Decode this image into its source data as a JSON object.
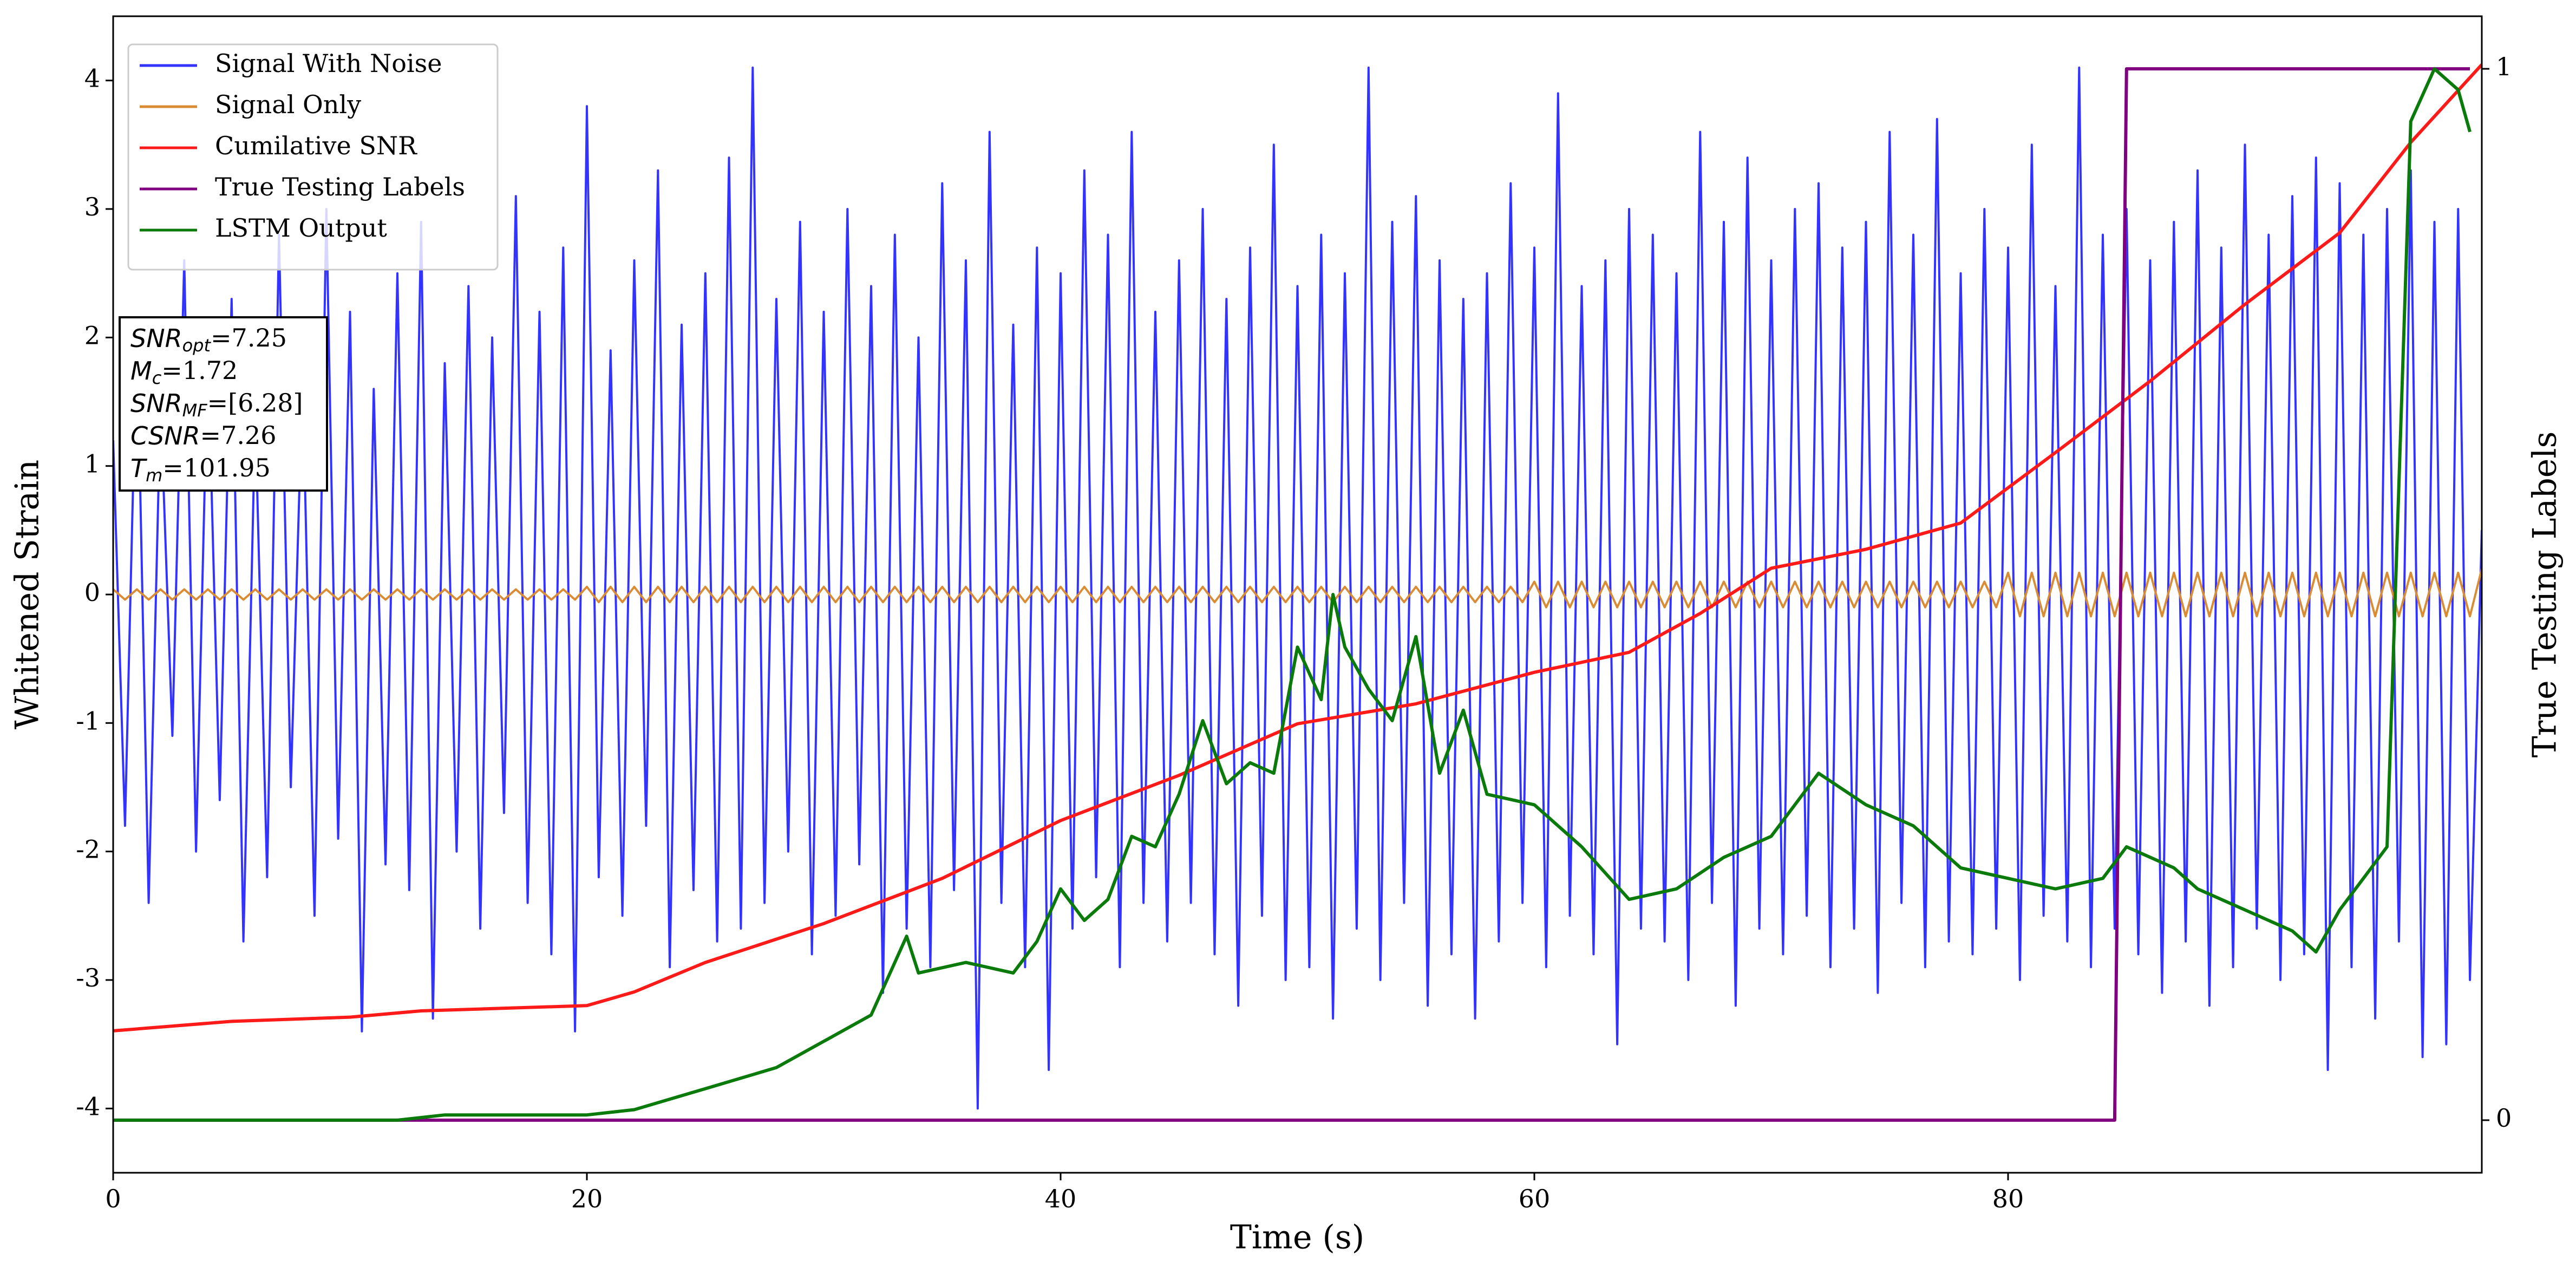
{
  "chart_data": {
    "type": "line",
    "xlabel": "Time (s)",
    "ylabel": "Whitened Strain",
    "y2label": "True Testing Labels",
    "xlim": [
      0,
      100
    ],
    "xticks": [
      0,
      20,
      40,
      60,
      80
    ],
    "ylim": [
      -4.5,
      4.5
    ],
    "yticks": [
      -4,
      -3,
      -2,
      -1,
      0,
      1,
      2,
      3,
      4
    ],
    "y2lim": [
      -0.05,
      1.05
    ],
    "y2ticks": [
      0,
      1
    ],
    "legend": "upper left",
    "x": [
      0,
      0.5,
      1,
      1.5,
      2,
      2.5,
      3,
      3.5,
      4,
      4.5,
      5,
      5.5,
      6,
      6.5,
      7,
      7.5,
      8,
      8.5,
      9,
      9.5,
      10,
      10.5,
      11,
      11.5,
      12,
      12.5,
      13,
      13.5,
      14,
      14.5,
      15,
      15.5,
      16,
      16.5,
      17,
      17.5,
      18,
      18.5,
      19,
      19.5,
      20,
      20.5,
      21,
      21.5,
      22,
      22.5,
      23,
      23.5,
      24,
      24.5,
      25,
      25.5,
      26,
      26.5,
      27,
      27.5,
      28,
      28.5,
      29,
      29.5,
      30,
      30.5,
      31,
      31.5,
      32,
      32.5,
      33,
      33.5,
      34,
      34.5,
      35,
      35.5,
      36,
      36.5,
      37,
      37.5,
      38,
      38.5,
      39,
      39.5,
      40,
      40.5,
      41,
      41.5,
      42,
      42.5,
      43,
      43.5,
      44,
      44.5,
      45,
      45.5,
      46,
      46.5,
      47,
      47.5,
      48,
      48.5,
      49,
      49.5,
      50,
      50.5,
      51,
      51.5,
      52,
      52.5,
      53,
      53.5,
      54,
      54.5,
      55,
      55.5,
      56,
      56.5,
      57,
      57.5,
      58,
      58.5,
      59,
      59.5,
      60,
      60.5,
      61,
      61.5,
      62,
      62.5,
      63,
      63.5,
      64,
      64.5,
      65,
      65.5,
      66,
      66.5,
      67,
      67.5,
      68,
      68.5,
      69,
      69.5,
      70,
      70.5,
      71,
      71.5,
      72,
      72.5,
      73,
      73.5,
      74,
      74.5,
      75,
      75.5,
      76,
      76.5,
      77,
      77.5,
      78,
      78.5,
      79,
      79.5,
      80,
      80.5,
      81,
      81.5,
      82,
      82.5,
      83,
      83.5,
      84,
      84.5,
      85,
      85.5,
      86,
      86.5,
      87,
      87.5,
      88,
      88.5,
      89,
      89.5,
      90,
      90.5,
      91,
      91.5,
      92,
      92.5,
      93,
      93.5,
      94,
      94.5,
      95,
      95.5,
      96,
      96.5,
      97,
      97.5,
      98,
      98.5,
      99,
      99.5,
      100
    ],
    "series": [
      {
        "name": "Signal With Noise",
        "color": "#3333ff",
        "values": [
          1.2,
          -1.8,
          2.1,
          -2.4,
          1.5,
          -1.1,
          2.6,
          -2.0,
          1.9,
          -1.6,
          2.3,
          -2.7,
          1.4,
          -2.2,
          2.8,
          -1.5,
          1.7,
          -2.5,
          3.0,
          -1.9,
          2.2,
          -3.4,
          1.6,
          -2.1,
          2.5,
          -2.3,
          2.9,
          -3.3,
          1.8,
          -2.0,
          2.4,
          -2.6,
          2.0,
          -1.7,
          3.1,
          -2.4,
          2.2,
          -2.8,
          2.7,
          -3.4,
          3.8,
          -2.2,
          1.9,
          -2.5,
          2.6,
          -1.8,
          3.3,
          -2.9,
          2.1,
          -2.3,
          2.5,
          -2.7,
          3.4,
          -2.6,
          4.1,
          -2.4,
          2.3,
          -2.0,
          2.9,
          -2.8,
          2.2,
          -2.5,
          3.0,
          -2.1,
          2.4,
          -3.1,
          2.8,
          -2.6,
          2.0,
          -2.9,
          3.2,
          -2.3,
          2.6,
          -4.0,
          3.6,
          -2.4,
          2.1,
          -2.9,
          2.7,
          -3.7,
          2.5,
          -2.6,
          3.3,
          -2.2,
          2.8,
          -2.9,
          3.6,
          -2.4,
          2.2,
          -2.7,
          2.6,
          -2.4,
          3.0,
          -2.8,
          2.3,
          -3.2,
          2.7,
          -2.5,
          3.5,
          -3.0,
          2.4,
          -2.9,
          2.8,
          -3.3,
          2.5,
          -2.6,
          4.1,
          -3.0,
          2.9,
          -2.4,
          3.1,
          -3.2,
          2.6,
          -2.8,
          2.3,
          -3.3,
          2.5,
          -2.7,
          3.2,
          -2.4,
          2.7,
          -2.9,
          3.9,
          -2.5,
          2.4,
          -2.8,
          2.6,
          -3.5,
          3.0,
          -2.6,
          2.8,
          -2.7,
          2.5,
          -3.0,
          3.6,
          -2.4,
          2.9,
          -3.2,
          3.4,
          -2.6,
          2.6,
          -2.8,
          3.0,
          -2.5,
          3.2,
          -2.9,
          2.7,
          -2.6,
          2.9,
          -3.1,
          3.6,
          -2.4,
          2.8,
          -2.9,
          3.7,
          -2.7,
          2.5,
          -2.8,
          3.0,
          -2.6,
          2.7,
          -3.0,
          3.5,
          -2.5,
          2.4,
          -2.7,
          4.1,
          -2.9,
          2.8,
          -2.6,
          3.0,
          -2.8,
          2.6,
          -3.1,
          2.9,
          -2.7,
          3.3,
          -3.2,
          2.7,
          -2.9,
          3.5,
          -2.6,
          2.8,
          -3.0,
          3.1,
          -2.8,
          3.4,
          -3.7,
          3.2,
          -2.9,
          2.8,
          -3.3,
          3.0,
          -2.7,
          3.3,
          -3.6,
          2.9,
          -3.5,
          3.0,
          -3.0,
          0.5
        ]
      },
      {
        "name": "Signal Only",
        "color": "#d98c33",
        "values": [
          0.04,
          -0.04,
          0.04,
          -0.04,
          0.04,
          -0.04,
          0.04,
          -0.04,
          0.04,
          -0.04,
          0.04,
          -0.04,
          0.04,
          -0.04,
          0.04,
          -0.04,
          0.04,
          -0.04,
          0.04,
          -0.04,
          0.04,
          -0.04,
          0.04,
          -0.04,
          0.04,
          -0.04,
          0.04,
          -0.04,
          0.04,
          -0.04,
          0.04,
          -0.04,
          0.04,
          -0.04,
          0.04,
          -0.04,
          0.04,
          -0.04,
          0.04,
          -0.04,
          0.06,
          -0.06,
          0.06,
          -0.06,
          0.06,
          -0.06,
          0.06,
          -0.06,
          0.06,
          -0.06,
          0.06,
          -0.06,
          0.06,
          -0.06,
          0.06,
          -0.06,
          0.06,
          -0.06,
          0.06,
          -0.06,
          0.06,
          -0.06,
          0.06,
          -0.06,
          0.06,
          -0.06,
          0.06,
          -0.06,
          0.06,
          -0.06,
          0.06,
          -0.06,
          0.06,
          -0.06,
          0.06,
          -0.06,
          0.06,
          -0.06,
          0.06,
          -0.06,
          0.06,
          -0.06,
          0.06,
          -0.06,
          0.06,
          -0.06,
          0.06,
          -0.06,
          0.06,
          -0.06,
          0.06,
          -0.06,
          0.06,
          -0.06,
          0.06,
          -0.06,
          0.06,
          -0.06,
          0.06,
          -0.06,
          0.06,
          -0.06,
          0.06,
          -0.06,
          0.06,
          -0.06,
          0.06,
          -0.06,
          0.06,
          -0.06,
          0.06,
          -0.06,
          0.06,
          -0.06,
          0.06,
          -0.06,
          0.06,
          -0.06,
          0.06,
          -0.06,
          0.1,
          -0.1,
          0.1,
          -0.1,
          0.1,
          -0.1,
          0.1,
          -0.1,
          0.1,
          -0.1,
          0.1,
          -0.1,
          0.1,
          -0.1,
          0.1,
          -0.1,
          0.1,
          -0.1,
          0.1,
          -0.1,
          0.1,
          -0.1,
          0.1,
          -0.1,
          0.1,
          -0.1,
          0.1,
          -0.1,
          0.1,
          -0.1,
          0.1,
          -0.1,
          0.1,
          -0.1,
          0.1,
          -0.1,
          0.1,
          -0.1,
          0.1,
          -0.1,
          0.17,
          -0.17,
          0.17,
          -0.17,
          0.17,
          -0.17,
          0.17,
          -0.17,
          0.17,
          -0.17,
          0.17,
          -0.17,
          0.17,
          -0.17,
          0.17,
          -0.17,
          0.17,
          -0.17,
          0.17,
          -0.17,
          0.17,
          -0.17,
          0.17,
          -0.17,
          0.17,
          -0.17,
          0.17,
          -0.17,
          0.17,
          -0.17,
          0.17,
          -0.17,
          0.17,
          -0.17,
          0.17,
          -0.17,
          0.17,
          -0.17,
          0.17,
          -0.17,
          0.2
        ]
      },
      {
        "name": "Cumilative SNR",
        "color": "#ff1a1a",
        "axis": "y2",
        "x": [
          0,
          5,
          10,
          13,
          20,
          22,
          25,
          30,
          35,
          40,
          45,
          50,
          55,
          60,
          64,
          67,
          70,
          74,
          78,
          82,
          86,
          90,
          94,
          97,
          100
        ],
        "values": [
          0.085,
          0.094,
          0.098,
          0.104,
          0.109,
          0.122,
          0.15,
          0.187,
          0.23,
          0.285,
          0.328,
          0.377,
          0.396,
          0.426,
          0.445,
          0.482,
          0.525,
          0.543,
          0.568,
          0.635,
          0.703,
          0.776,
          0.844,
          0.93,
          1.004
        ]
      },
      {
        "name": "True Testing Labels",
        "color": "#800080",
        "axis": "y2",
        "x": [
          0,
          84.5,
          85,
          99.5
        ],
        "values": [
          0,
          0,
          1,
          1
        ]
      },
      {
        "name": "LSTM Output",
        "color": "#0a7a0a",
        "axis": "y2",
        "x": [
          0,
          12,
          14,
          20,
          22,
          25,
          28,
          30,
          32,
          33.5,
          34,
          36,
          38,
          39,
          40,
          41,
          42,
          43,
          44,
          45,
          46,
          47,
          48,
          49,
          50,
          51,
          51.5,
          52,
          53,
          54,
          55,
          56,
          57,
          58,
          60,
          62,
          64,
          66,
          68,
          70,
          72,
          74,
          76,
          78,
          80,
          82,
          84,
          85,
          87,
          88,
          90,
          92,
          93,
          94,
          95,
          96,
          97,
          98,
          99,
          99.5
        ],
        "values": [
          0,
          0,
          0.005,
          0.005,
          0.01,
          0.03,
          0.05,
          0.075,
          0.1,
          0.175,
          0.14,
          0.15,
          0.14,
          0.17,
          0.22,
          0.19,
          0.21,
          0.27,
          0.26,
          0.31,
          0.38,
          0.32,
          0.34,
          0.33,
          0.45,
          0.4,
          0.5,
          0.45,
          0.41,
          0.38,
          0.46,
          0.33,
          0.39,
          0.31,
          0.3,
          0.26,
          0.21,
          0.22,
          0.25,
          0.27,
          0.33,
          0.3,
          0.28,
          0.24,
          0.23,
          0.22,
          0.23,
          0.26,
          0.24,
          0.22,
          0.2,
          0.18,
          0.16,
          0.2,
          0.23,
          0.26,
          0.95,
          1.0,
          0.98,
          0.94
        ]
      }
    ],
    "annotations": [
      {
        "symbol": "SNR",
        "subscript": "opt",
        "text": "=7.25"
      },
      {
        "symbol": "M",
        "subscript": "c",
        "text": "=1.72"
      },
      {
        "symbol": "SNR",
        "subscript": "MF",
        "text": "=[6.28]"
      },
      {
        "symbol": "CSNR",
        "text": "=7.26"
      },
      {
        "symbol": "T",
        "subscript": "m",
        "text": "=101.95"
      }
    ]
  }
}
